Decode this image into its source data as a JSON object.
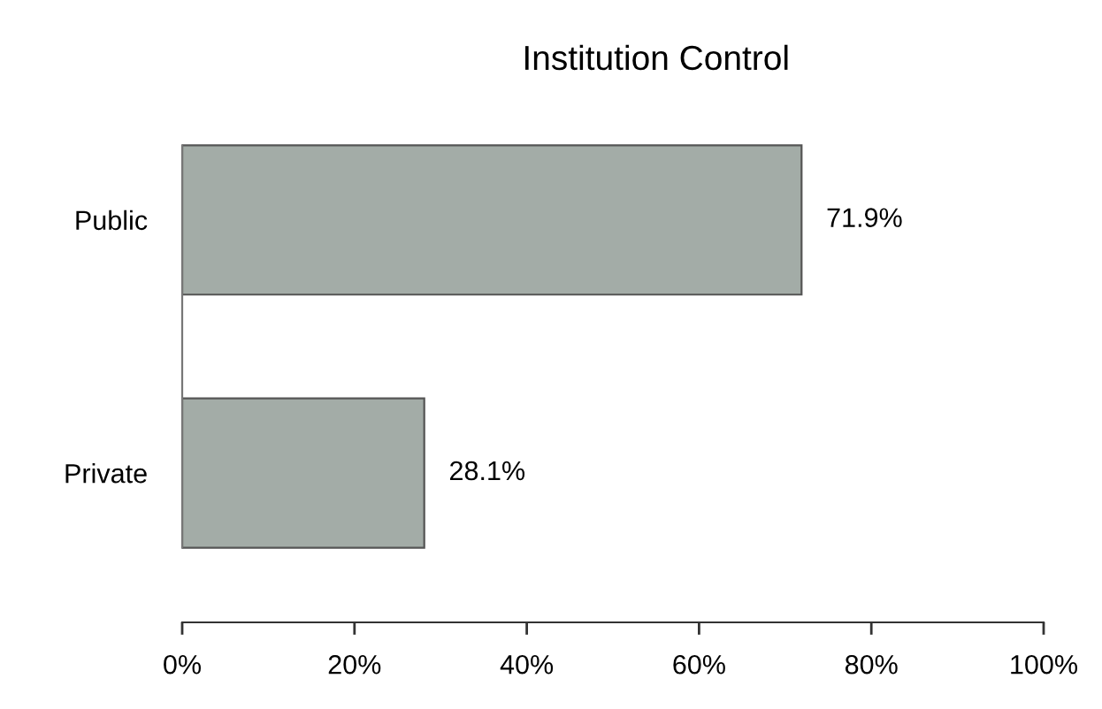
{
  "chart_data": {
    "type": "bar",
    "orientation": "horizontal",
    "title": "Institution Control",
    "categories": [
      "Public",
      "Private"
    ],
    "values": [
      71.9,
      28.1
    ],
    "value_labels": [
      "71.9%",
      "28.1%"
    ],
    "color": "#a3aca7",
    "xlim": [
      0,
      100
    ],
    "xticks": [
      {
        "value": 0,
        "label": "0%"
      },
      {
        "value": 20,
        "label": "20%"
      },
      {
        "value": 40,
        "label": "40%"
      },
      {
        "value": 60,
        "label": "60%"
      },
      {
        "value": 80,
        "label": "80%"
      },
      {
        "value": 100,
        "label": "100%"
      }
    ],
    "grid": false,
    "legend": false
  }
}
